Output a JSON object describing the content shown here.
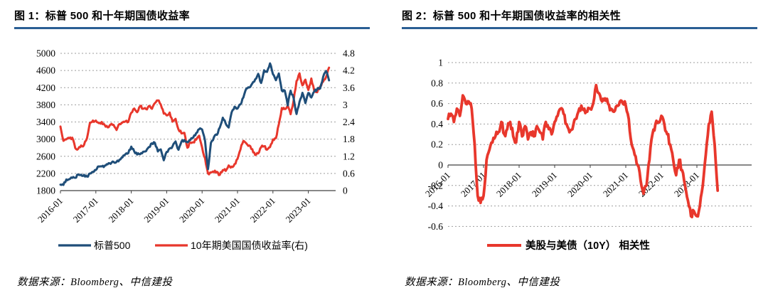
{
  "page": {
    "background": "#ffffff"
  },
  "figures": [
    {
      "title": "图 1：标普 500 和十年期国债收益率",
      "source": "数据来源：Bloomberg、中信建投"
    },
    {
      "title": "图 2：标普 500 和十年期国债收益率的相关性",
      "source": "数据来源：Bloomberg、中信建投"
    }
  ],
  "colors": {
    "title_rule": "#2A5E94",
    "sp500_line": "#1F4E79",
    "yield_line": "#E8372C",
    "correlation_line": "#E8372C",
    "gridline": "#9e9e9e",
    "axis": "#404040"
  },
  "chart_data": [
    {
      "type": "line",
      "title": "图 1：标普 500 和十年期国债收益率",
      "x_start": "2016-01",
      "x_interval": "monthly",
      "x_tick_labels": [
        "2016-01",
        "2017-01",
        "2018-01",
        "2019-01",
        "2020-01",
        "2021-01",
        "2022-01",
        "2023-01"
      ],
      "left_axis": {
        "min": 1800,
        "max": 5000,
        "tick_labels": [
          "1800",
          "2200",
          "2600",
          "3000",
          "3400",
          "3800",
          "4200",
          "4600",
          "5000"
        ]
      },
      "right_axis": {
        "min": 0,
        "max": 4.8,
        "tick_labels": [
          "0",
          "0.6",
          "1.2",
          "1.8",
          "2.4",
          "3",
          "3.6",
          "4.2",
          "4.8"
        ]
      },
      "grid": "horizontal-dotted",
      "legend_position": "bottom",
      "series": [
        {
          "name": "标普500",
          "axis": "left",
          "color": "#1F4E79",
          "values": [
            1940,
            1932,
            2060,
            2065,
            2097,
            2099,
            2174,
            2171,
            2168,
            2126,
            2199,
            2239,
            2279,
            2364,
            2363,
            2384,
            2412,
            2423,
            2470,
            2472,
            2519,
            2575,
            2648,
            2674,
            2824,
            2714,
            2641,
            2648,
            2705,
            2718,
            2816,
            2902,
            2914,
            2712,
            2760,
            2507,
            2704,
            2784,
            2834,
            2946,
            2752,
            2942,
            2980,
            2926,
            2977,
            3038,
            3141,
            3231,
            3226,
            2954,
            2300,
            2912,
            3044,
            3100,
            3271,
            3500,
            3363,
            3270,
            3622,
            3756,
            3714,
            3811,
            3973,
            4181,
            4204,
            4298,
            4395,
            4523,
            4308,
            4605,
            4567,
            4766,
            4516,
            4374,
            4530,
            4132,
            4132,
            3785,
            4130,
            3955,
            3586,
            3872,
            4080,
            3840,
            4077,
            3970,
            4109,
            4169,
            4180,
            4450,
            4589,
            4370
          ]
        },
        {
          "name": "10年期美国国债收益率(右)",
          "axis": "right",
          "color": "#E8372C",
          "values": [
            2.24,
            1.74,
            1.79,
            1.83,
            1.85,
            1.49,
            1.46,
            1.58,
            1.6,
            1.83,
            2.37,
            2.45,
            2.45,
            2.36,
            2.4,
            2.29,
            2.21,
            2.31,
            2.3,
            2.12,
            2.33,
            2.38,
            2.42,
            2.4,
            2.72,
            2.87,
            2.74,
            2.95,
            2.86,
            2.85,
            2.96,
            2.86,
            3.06,
            3.15,
            3.01,
            2.69,
            2.63,
            2.73,
            2.41,
            2.51,
            2.14,
            2.0,
            2.02,
            1.5,
            1.68,
            1.69,
            1.78,
            1.92,
            1.51,
            1.13,
            0.6,
            0.64,
            0.65,
            0.66,
            0.55,
            0.72,
            0.69,
            0.88,
            0.84,
            0.93,
            1.11,
            1.44,
            1.74,
            1.65,
            1.58,
            1.45,
            1.24,
            1.3,
            1.52,
            1.55,
            1.43,
            1.52,
            1.79,
            1.83,
            2.32,
            2.89,
            2.85,
            2.98,
            2.67,
            3.15,
            3.83,
            4.1,
            3.68,
            3.88,
            3.52,
            3.92,
            3.49,
            3.44,
            3.64,
            3.81,
            3.97,
            4.3
          ]
        }
      ]
    },
    {
      "type": "line",
      "title": "图 2：标普 500 和十年期国债收益率的相关性",
      "x_start": "2016-01",
      "x_interval": "monthly",
      "x_tick_labels": [
        "2016-01",
        "2017-01",
        "2018-01",
        "2019-01",
        "2020-01",
        "2021-01",
        "2022-01",
        "2023-01"
      ],
      "y_axis": {
        "min": -0.6,
        "max": 1,
        "tick_labels": [
          "-0.6",
          "-0.4",
          "-0.2",
          "0",
          "0.2",
          "0.4",
          "0.6",
          "0.8",
          "1"
        ]
      },
      "grid": "horizontal-dotted",
      "legend_position": "bottom",
      "series": [
        {
          "name": "美股与美债（10Y） 相关性",
          "color": "#E8372C",
          "values": [
            0.45,
            0.5,
            0.42,
            0.55,
            0.48,
            0.68,
            0.6,
            0.62,
            0.55,
            0.2,
            -0.3,
            -0.37,
            -0.3,
            0.05,
            0.15,
            0.22,
            0.28,
            0.32,
            0.42,
            0.3,
            0.35,
            0.42,
            0.28,
            0.22,
            0.42,
            0.28,
            0.38,
            0.25,
            0.32,
            0.28,
            0.38,
            0.32,
            0.25,
            0.42,
            0.35,
            0.3,
            0.42,
            0.48,
            0.55,
            0.5,
            0.4,
            0.32,
            0.35,
            0.45,
            0.52,
            0.58,
            0.55,
            0.52,
            0.55,
            0.6,
            0.78,
            0.7,
            0.62,
            0.65,
            0.6,
            0.55,
            0.52,
            0.58,
            0.62,
            0.6,
            0.58,
            0.45,
            0.2,
            0.1,
            0.0,
            -0.15,
            -0.28,
            -0.2,
            0.05,
            0.3,
            0.4,
            0.42,
            0.48,
            0.4,
            0.3,
            0.2,
            0.05,
            -0.1,
            0.05,
            -0.05,
            -0.2,
            -0.35,
            -0.5,
            -0.45,
            -0.5,
            -0.4,
            -0.2,
            0.1,
            0.4,
            0.52,
            0.2,
            -0.25
          ]
        }
      ]
    }
  ]
}
